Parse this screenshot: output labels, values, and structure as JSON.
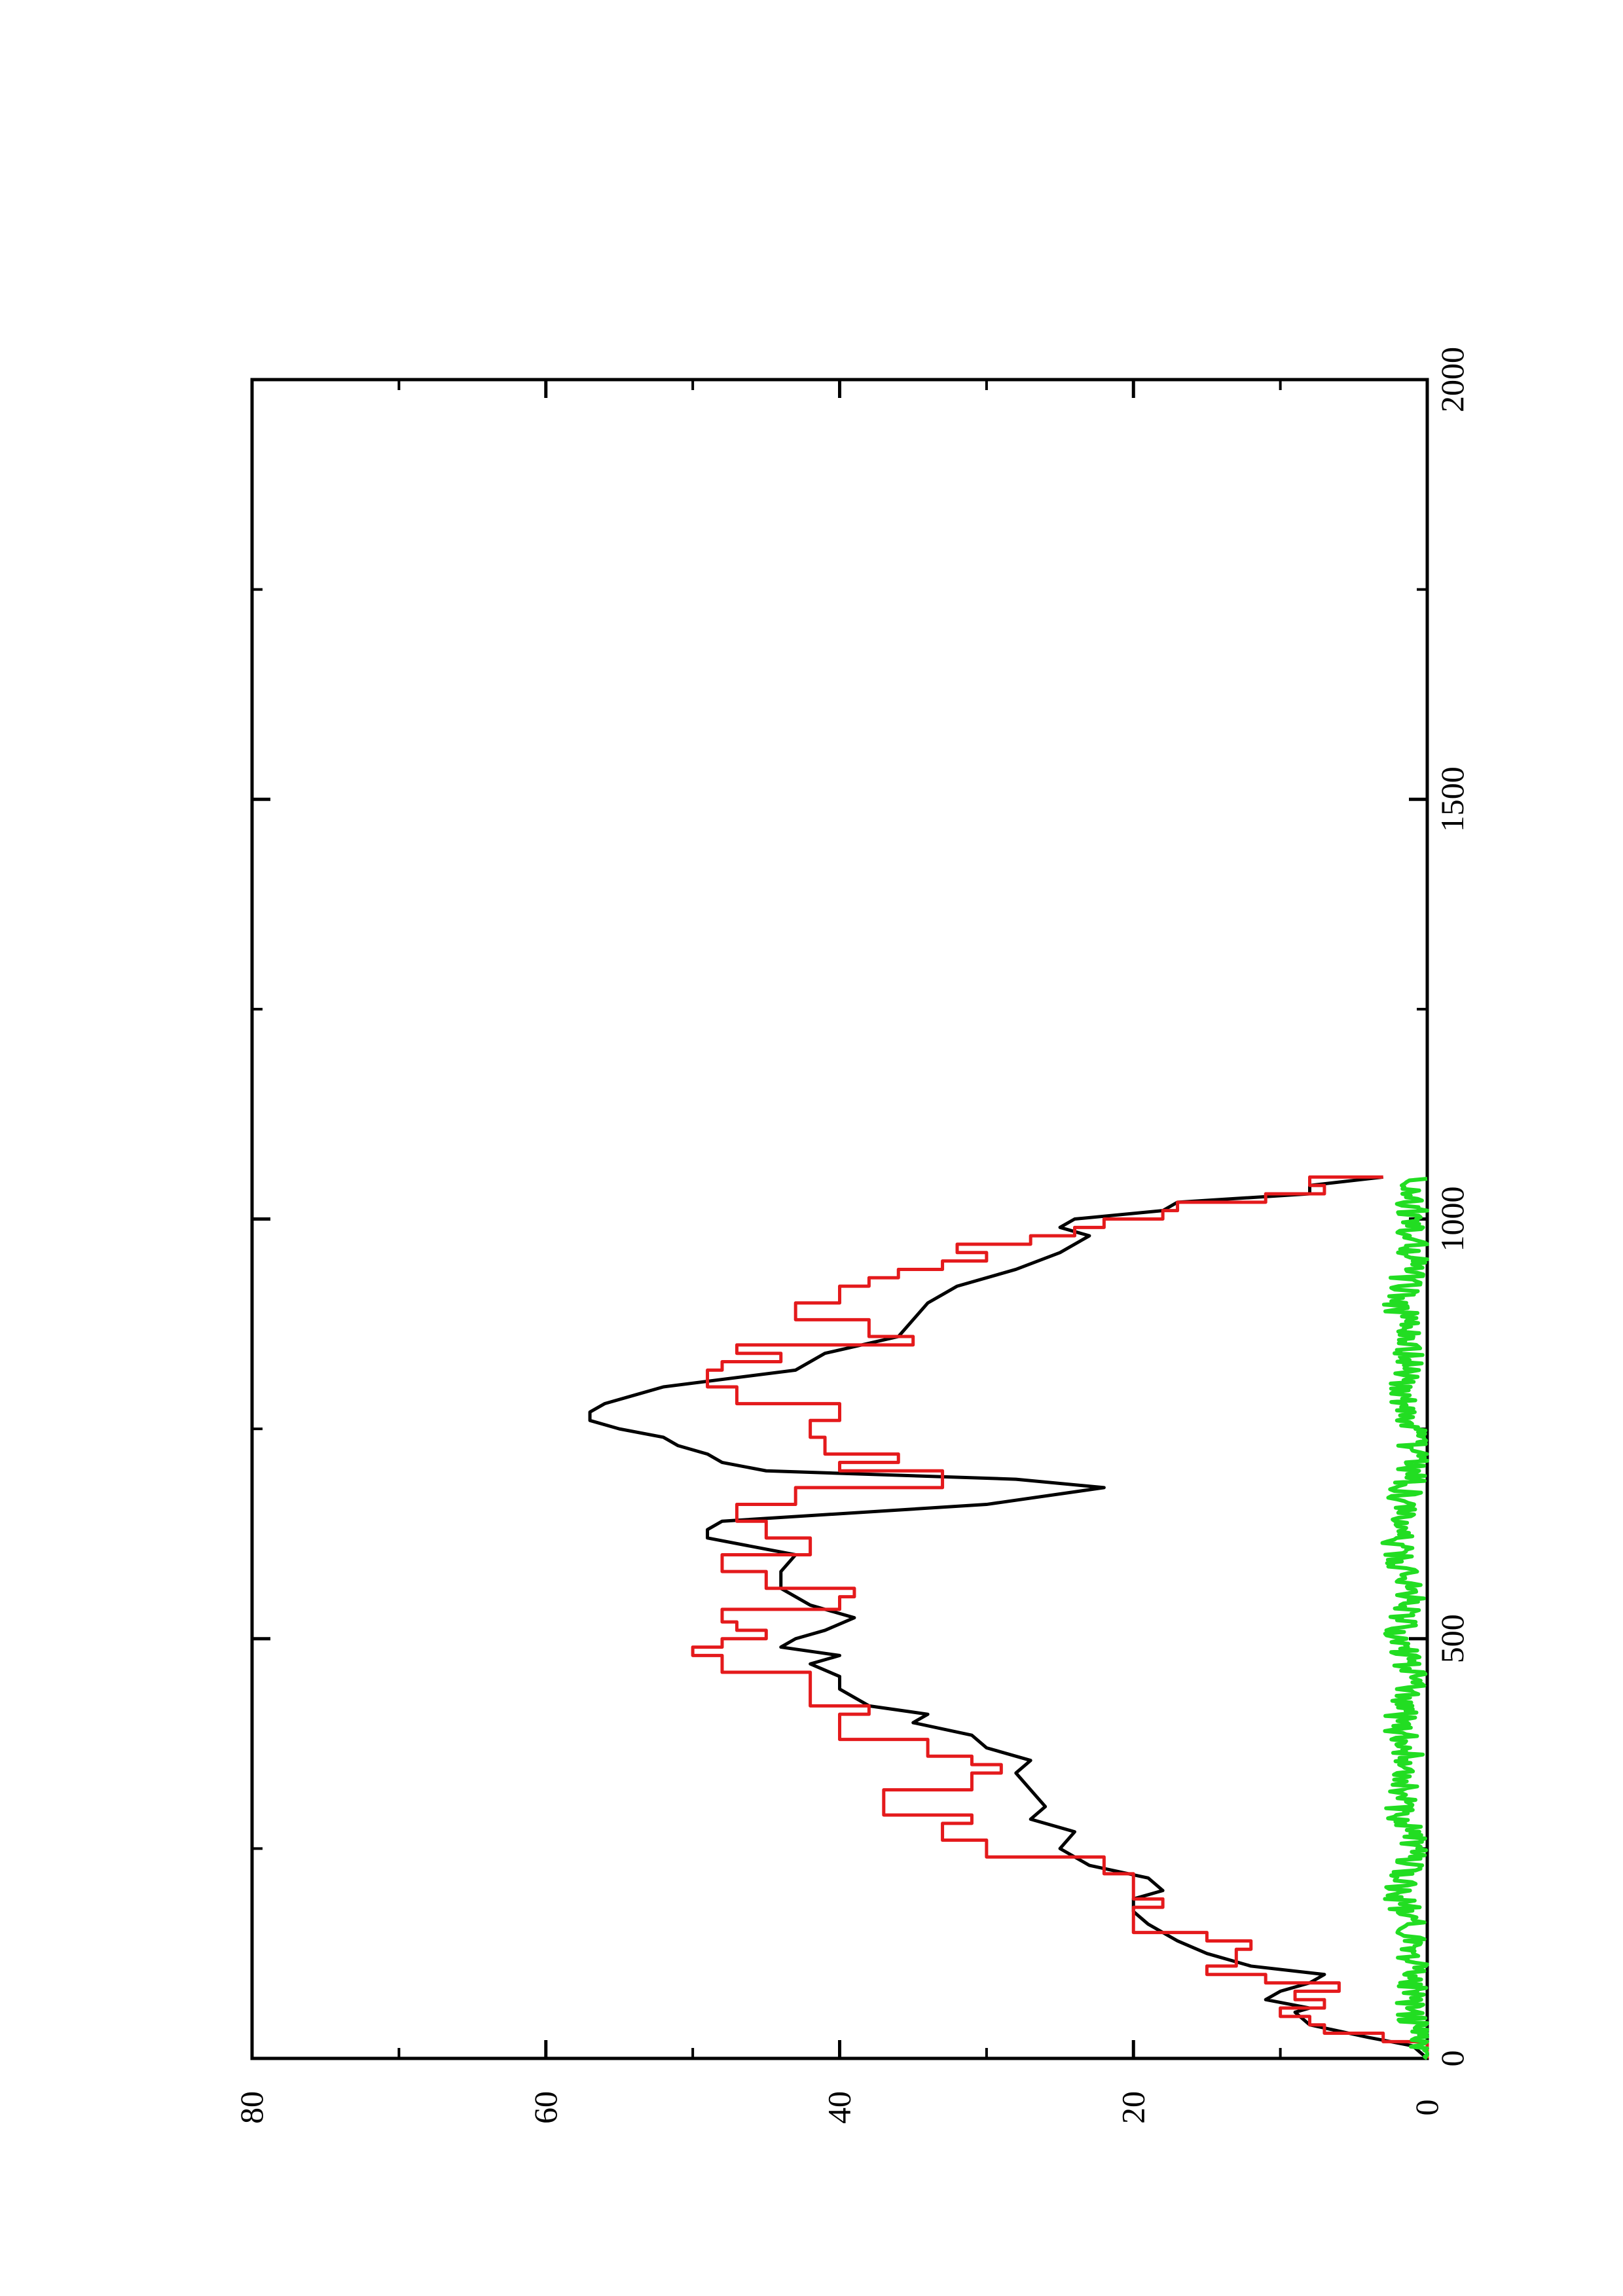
{
  "chart_data": {
    "type": "line",
    "title": "",
    "xlabel": "",
    "ylabel": "",
    "xlim": [
      0,
      2000
    ],
    "ylim": [
      0,
      80
    ],
    "x_ticks_major": [
      0,
      500,
      1000,
      1500,
      2000
    ],
    "x_tick_labels": [
      "0",
      "500",
      "1000",
      "1500",
      "2000"
    ],
    "y_ticks_major": [
      0,
      20,
      40,
      60,
      80
    ],
    "y_tick_labels": [
      "0",
      "20",
      "40",
      "60",
      "80"
    ],
    "grid": false,
    "orientation": "rotated-90-ccw",
    "series": [
      {
        "color": "#000000",
        "style": "line",
        "points": [
          [
            0,
            0
          ],
          [
            15,
            1
          ],
          [
            25,
            4
          ],
          [
            40,
            8
          ],
          [
            55,
            9
          ],
          [
            60,
            8
          ],
          [
            70,
            11
          ],
          [
            80,
            10
          ],
          [
            90,
            8
          ],
          [
            100,
            7
          ],
          [
            110,
            12
          ],
          [
            125,
            15
          ],
          [
            140,
            17
          ],
          [
            160,
            19
          ],
          [
            175,
            20
          ],
          [
            190,
            20
          ],
          [
            200,
            18
          ],
          [
            215,
            19
          ],
          [
            230,
            23
          ],
          [
            250,
            25
          ],
          [
            270,
            24
          ],
          [
            285,
            27
          ],
          [
            300,
            26
          ],
          [
            320,
            27
          ],
          [
            340,
            28
          ],
          [
            355,
            27
          ],
          [
            370,
            30
          ],
          [
            385,
            31
          ],
          [
            400,
            35
          ],
          [
            410,
            34
          ],
          [
            420,
            38
          ],
          [
            440,
            40
          ],
          [
            455,
            40
          ],
          [
            470,
            42
          ],
          [
            480,
            40
          ],
          [
            490,
            44
          ],
          [
            500,
            43
          ],
          [
            510,
            41
          ],
          [
            525,
            39
          ],
          [
            540,
            42
          ],
          [
            560,
            44
          ],
          [
            580,
            44
          ],
          [
            600,
            43
          ],
          [
            620,
            49
          ],
          [
            630,
            49
          ],
          [
            640,
            48
          ],
          [
            660,
            30
          ],
          [
            680,
            22
          ],
          [
            690,
            28
          ],
          [
            700,
            45
          ],
          [
            710,
            48
          ],
          [
            720,
            49
          ],
          [
            730,
            51
          ],
          [
            740,
            52
          ],
          [
            750,
            55
          ],
          [
            760,
            57
          ],
          [
            770,
            57
          ],
          [
            780,
            56
          ],
          [
            790,
            54
          ],
          [
            800,
            52
          ],
          [
            820,
            43
          ],
          [
            840,
            41
          ],
          [
            860,
            36
          ],
          [
            880,
            35
          ],
          [
            900,
            34
          ],
          [
            910,
            33
          ],
          [
            920,
            32
          ],
          [
            940,
            28
          ],
          [
            960,
            25
          ],
          [
            980,
            23
          ],
          [
            990,
            25
          ],
          [
            1000,
            24
          ],
          [
            1010,
            18
          ],
          [
            1020,
            17
          ],
          [
            1030,
            8
          ],
          [
            1040,
            8
          ],
          [
            1050,
            3
          ]
        ]
      },
      {
        "color": "#e41a1c",
        "style": "step",
        "points": [
          [
            0,
            0
          ],
          [
            20,
            3
          ],
          [
            30,
            7
          ],
          [
            40,
            8
          ],
          [
            50,
            10
          ],
          [
            60,
            7
          ],
          [
            70,
            9
          ],
          [
            80,
            6
          ],
          [
            90,
            11
          ],
          [
            100,
            15
          ],
          [
            110,
            13
          ],
          [
            130,
            12
          ],
          [
            140,
            15
          ],
          [
            150,
            20
          ],
          [
            170,
            20
          ],
          [
            180,
            18
          ],
          [
            190,
            20
          ],
          [
            200,
            20
          ],
          [
            220,
            22
          ],
          [
            240,
            30
          ],
          [
            260,
            33
          ],
          [
            280,
            31
          ],
          [
            290,
            37
          ],
          [
            300,
            37
          ],
          [
            320,
            31
          ],
          [
            340,
            29
          ],
          [
            350,
            31
          ],
          [
            360,
            34
          ],
          [
            380,
            40
          ],
          [
            400,
            40
          ],
          [
            410,
            38
          ],
          [
            420,
            42
          ],
          [
            450,
            42
          ],
          [
            460,
            48
          ],
          [
            480,
            50
          ],
          [
            490,
            48
          ],
          [
            500,
            45
          ],
          [
            510,
            47
          ],
          [
            520,
            48
          ],
          [
            535,
            40
          ],
          [
            550,
            39
          ],
          [
            560,
            45
          ],
          [
            580,
            48
          ],
          [
            600,
            42
          ],
          [
            620,
            45
          ],
          [
            640,
            47
          ],
          [
            660,
            43
          ],
          [
            680,
            33
          ],
          [
            700,
            40
          ],
          [
            710,
            36
          ],
          [
            720,
            41
          ],
          [
            740,
            42
          ],
          [
            760,
            40
          ],
          [
            780,
            47
          ],
          [
            800,
            49
          ],
          [
            820,
            48
          ],
          [
            830,
            44
          ],
          [
            840,
            47
          ],
          [
            850,
            35
          ],
          [
            860,
            38
          ],
          [
            880,
            43
          ],
          [
            900,
            40
          ],
          [
            910,
            40
          ],
          [
            920,
            38
          ],
          [
            930,
            36
          ],
          [
            940,
            33
          ],
          [
            950,
            30
          ],
          [
            960,
            32
          ],
          [
            970,
            27
          ],
          [
            980,
            24
          ],
          [
            990,
            22
          ],
          [
            1000,
            18
          ],
          [
            1010,
            17
          ],
          [
            1020,
            11
          ],
          [
            1030,
            7
          ],
          [
            1040,
            8
          ],
          [
            1050,
            3
          ]
        ]
      },
      {
        "color": "#22dd22",
        "style": "noise",
        "points": [
          [
            0,
            0
          ],
          [
            50,
            1
          ],
          [
            100,
            1
          ],
          [
            150,
            1
          ],
          [
            200,
            2
          ],
          [
            250,
            1
          ],
          [
            300,
            2
          ],
          [
            350,
            1
          ],
          [
            400,
            2
          ],
          [
            450,
            1
          ],
          [
            500,
            2
          ],
          [
            550,
            1
          ],
          [
            600,
            2
          ],
          [
            650,
            2
          ],
          [
            700,
            1
          ],
          [
            750,
            1
          ],
          [
            800,
            2
          ],
          [
            850,
            1
          ],
          [
            900,
            2
          ],
          [
            950,
            1
          ],
          [
            1000,
            1
          ],
          [
            1050,
            1
          ]
        ]
      }
    ]
  }
}
